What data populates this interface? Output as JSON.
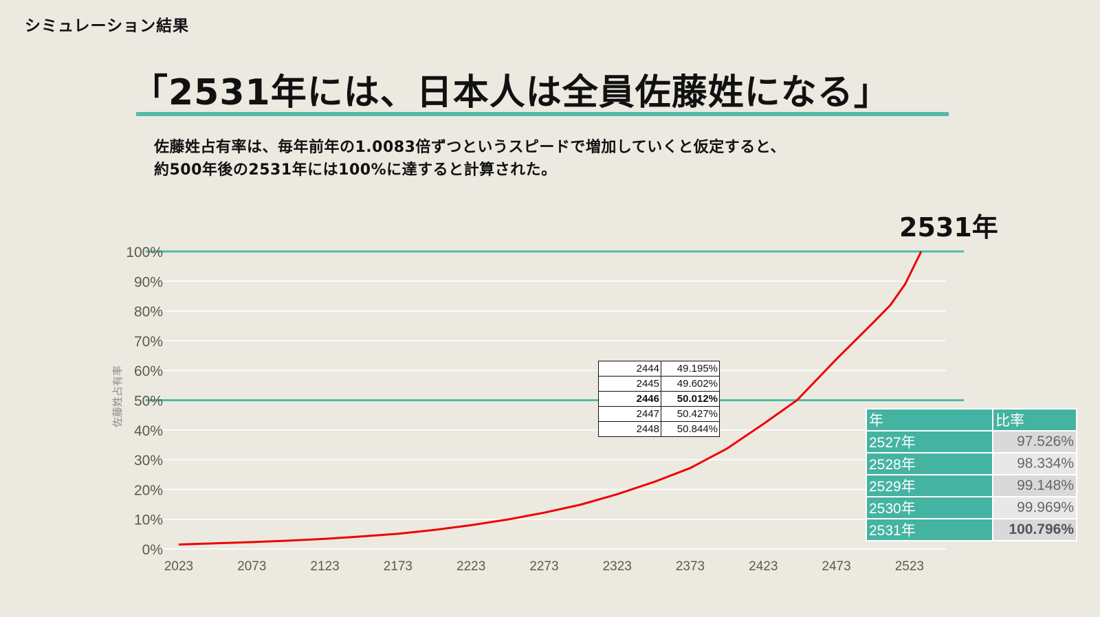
{
  "header": {
    "section_label": "シミュレーション結果",
    "headline": "「2531年には、日本人は全員佐藤姓になる」",
    "description": [
      "佐藤姓占有率は、毎年前年の1.0083倍ずつというスピードで増加していくと仮定すると、",
      "約500年後の2531年には100%に達すると計算された。"
    ],
    "callout": "2531年"
  },
  "colors": {
    "background": "#ECE9E1",
    "accent": "#52BBA6",
    "curve": "#EE0000",
    "table_header": "#45B3A1"
  },
  "chart_data": {
    "type": "line",
    "ylabel": "佐藤姓占有率",
    "xlabel": "",
    "xlim": [
      2023,
      2548
    ],
    "ylim": [
      0,
      100
    ],
    "x_ticks": [
      "2023",
      "2073",
      "2123",
      "2173",
      "2223",
      "2273",
      "2323",
      "2373",
      "2423",
      "2473",
      "2523"
    ],
    "y_ticks": [
      "0%",
      "10%",
      "20%",
      "30%",
      "40%",
      "50%",
      "60%",
      "70%",
      "80%",
      "90%",
      "100%"
    ],
    "grid": true,
    "reference_lines": [
      100,
      50
    ],
    "series": [
      {
        "x": [
          2023,
          2048,
          2073,
          2098,
          2123,
          2148,
          2173,
          2198,
          2223,
          2248,
          2273,
          2298,
          2323,
          2348,
          2373,
          2398,
          2423,
          2446,
          2473,
          2498,
          2510,
          2520,
          2531
        ],
        "y": [
          1.5,
          1.9,
          2.3,
          2.8,
          3.4,
          4.2,
          5.1,
          6.4,
          8.0,
          9.9,
          12.2,
          14.9,
          18.4,
          22.5,
          27.2,
          33.7,
          42.0,
          50.0,
          63.8,
          76.0,
          82.0,
          89.0,
          100.0
        ]
      }
    ],
    "zoom_table": [
      {
        "year": "2444",
        "rate": "49.195%"
      },
      {
        "year": "2445",
        "rate": "49.602%"
      },
      {
        "year": "2446",
        "rate": "50.012%",
        "highlight": true
      },
      {
        "year": "2447",
        "rate": "50.427%"
      },
      {
        "year": "2448",
        "rate": "50.844%"
      }
    ],
    "rate_table": {
      "headers": [
        "年",
        "比率"
      ],
      "rows": [
        {
          "year": "2527年",
          "rate": "97.526%"
        },
        {
          "year": "2528年",
          "rate": "98.334%"
        },
        {
          "year": "2529年",
          "rate": "99.148%"
        },
        {
          "year": "2530年",
          "rate": "99.969%"
        },
        {
          "year": "2531年",
          "rate": "100.796%"
        }
      ]
    }
  }
}
